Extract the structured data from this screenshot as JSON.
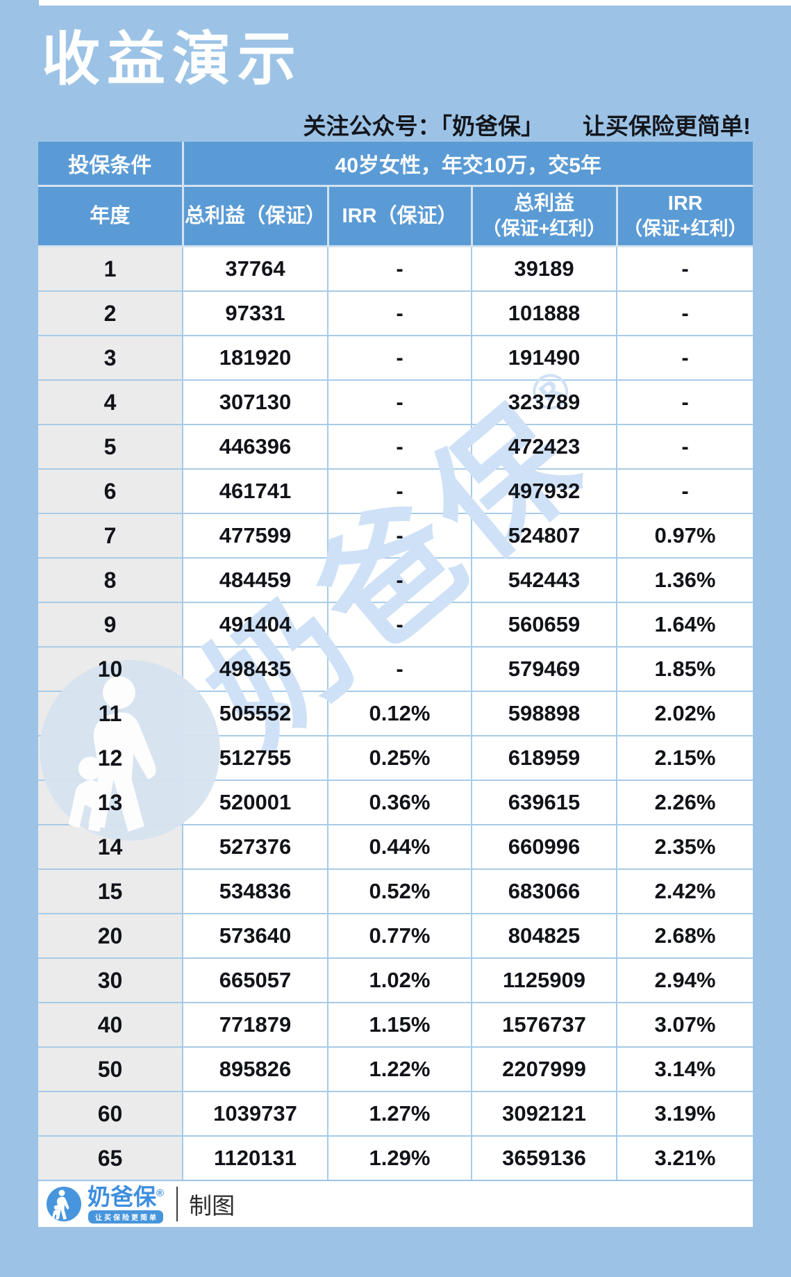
{
  "page": {
    "title": "收益演示",
    "subtitle_left": "关注公众号：「奶爸保」",
    "subtitle_right": "让买保险更简单!"
  },
  "chart_data": {
    "type": "table",
    "title": "收益演示",
    "condition_label": "投保条件",
    "condition_value": "40岁女性，年交10万，交5年",
    "columns": [
      "年度",
      "总利益（保证）",
      "IRR（保证）",
      "总利益",
      "IRR"
    ],
    "columns_sub": [
      "",
      "",
      "",
      "（保证+红利）",
      "（保证+红利）"
    ],
    "rows": [
      [
        "1",
        "37764",
        "-",
        "39189",
        "-"
      ],
      [
        "2",
        "97331",
        "-",
        "101888",
        "-"
      ],
      [
        "3",
        "181920",
        "-",
        "191490",
        "-"
      ],
      [
        "4",
        "307130",
        "-",
        "323789",
        "-"
      ],
      [
        "5",
        "446396",
        "-",
        "472423",
        "-"
      ],
      [
        "6",
        "461741",
        "-",
        "497932",
        "-"
      ],
      [
        "7",
        "477599",
        "-",
        "524807",
        "0.97%"
      ],
      [
        "8",
        "484459",
        "-",
        "542443",
        "1.36%"
      ],
      [
        "9",
        "491404",
        "-",
        "560659",
        "1.64%"
      ],
      [
        "10",
        "498435",
        "-",
        "579469",
        "1.85%"
      ],
      [
        "11",
        "505552",
        "0.12%",
        "598898",
        "2.02%"
      ],
      [
        "12",
        "512755",
        "0.25%",
        "618959",
        "2.15%"
      ],
      [
        "13",
        "520001",
        "0.36%",
        "639615",
        "2.26%"
      ],
      [
        "14",
        "527376",
        "0.44%",
        "660996",
        "2.35%"
      ],
      [
        "15",
        "534836",
        "0.52%",
        "683066",
        "2.42%"
      ],
      [
        "20",
        "573640",
        "0.77%",
        "804825",
        "2.68%"
      ],
      [
        "30",
        "665057",
        "1.02%",
        "1125909",
        "2.94%"
      ],
      [
        "40",
        "771879",
        "1.15%",
        "1576737",
        "3.07%"
      ],
      [
        "50",
        "895826",
        "1.22%",
        "2207999",
        "3.14%"
      ],
      [
        "60",
        "1039737",
        "1.27%",
        "3092121",
        "3.19%"
      ],
      [
        "65",
        "1120131",
        "1.29%",
        "3659136",
        "3.21%"
      ]
    ]
  },
  "watermark": {
    "text": "奶爸保",
    "reg": "®"
  },
  "footer": {
    "brand": "奶爸保",
    "reg": "®",
    "tagline": "让买保险更简单",
    "credit": "制图"
  },
  "colors": {
    "page_bg": "#9cc3e6",
    "header_bg": "#5b9bd5",
    "first_col_bg": "#ebebeb",
    "grid_line": "#a6cbe9",
    "brand_blue": "#3e8ede",
    "watermark_blue": "#cfe1f6",
    "text_dark": "#14161c"
  }
}
